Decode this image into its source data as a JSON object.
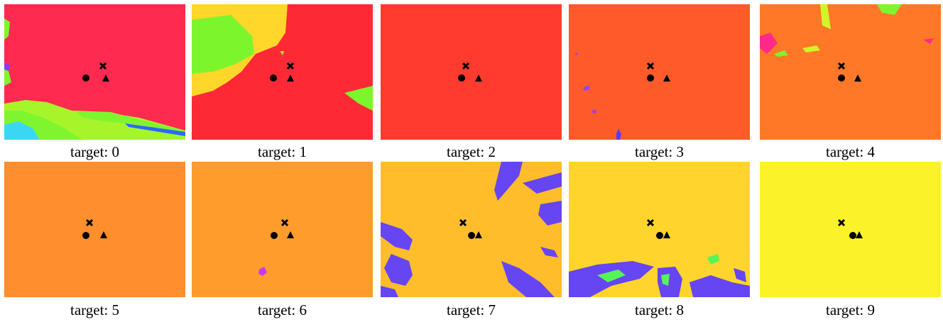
{
  "panels": [
    {
      "caption": "target: 0",
      "base_color": "#ff2a4f",
      "region_colors": [
        "#7ff52f",
        "#a6f52a",
        "#3ad7f5",
        "#2a6af5",
        "#8f3af5"
      ]
    },
    {
      "caption": "target: 1",
      "base_color": "#fd2a36",
      "region_colors": [
        "#7df52d",
        "#ffd62a",
        "#a6f52a"
      ]
    },
    {
      "caption": "target: 2",
      "base_color": "#ff3a2f",
      "region_colors": []
    },
    {
      "caption": "target: 3",
      "base_color": "#ff5a29",
      "region_colors": [
        "#9a40f5",
        "#5b3af5"
      ]
    },
    {
      "caption": "target: 4",
      "base_color": "#ff7828",
      "region_colors": [
        "#7ff52f",
        "#d0f52a",
        "#ff2a8a"
      ]
    },
    {
      "caption": "target: 5",
      "base_color": "#ff8e2c",
      "region_colors": []
    },
    {
      "caption": "target: 6",
      "base_color": "#ff9c2c",
      "region_colors": [
        "#c23af5"
      ]
    },
    {
      "caption": "target: 7",
      "base_color": "#ffbd2b",
      "region_colors": [
        "#6645f2"
      ]
    },
    {
      "caption": "target: 8",
      "base_color": "#ffd42c",
      "region_colors": [
        "#6645f2",
        "#55f55a"
      ]
    },
    {
      "caption": "target: 9",
      "base_color": "#fbf22a",
      "region_colors": []
    }
  ],
  "markers": {
    "cross": "cross-marker",
    "circle": "circle-marker",
    "triangle": "triangle-marker"
  }
}
